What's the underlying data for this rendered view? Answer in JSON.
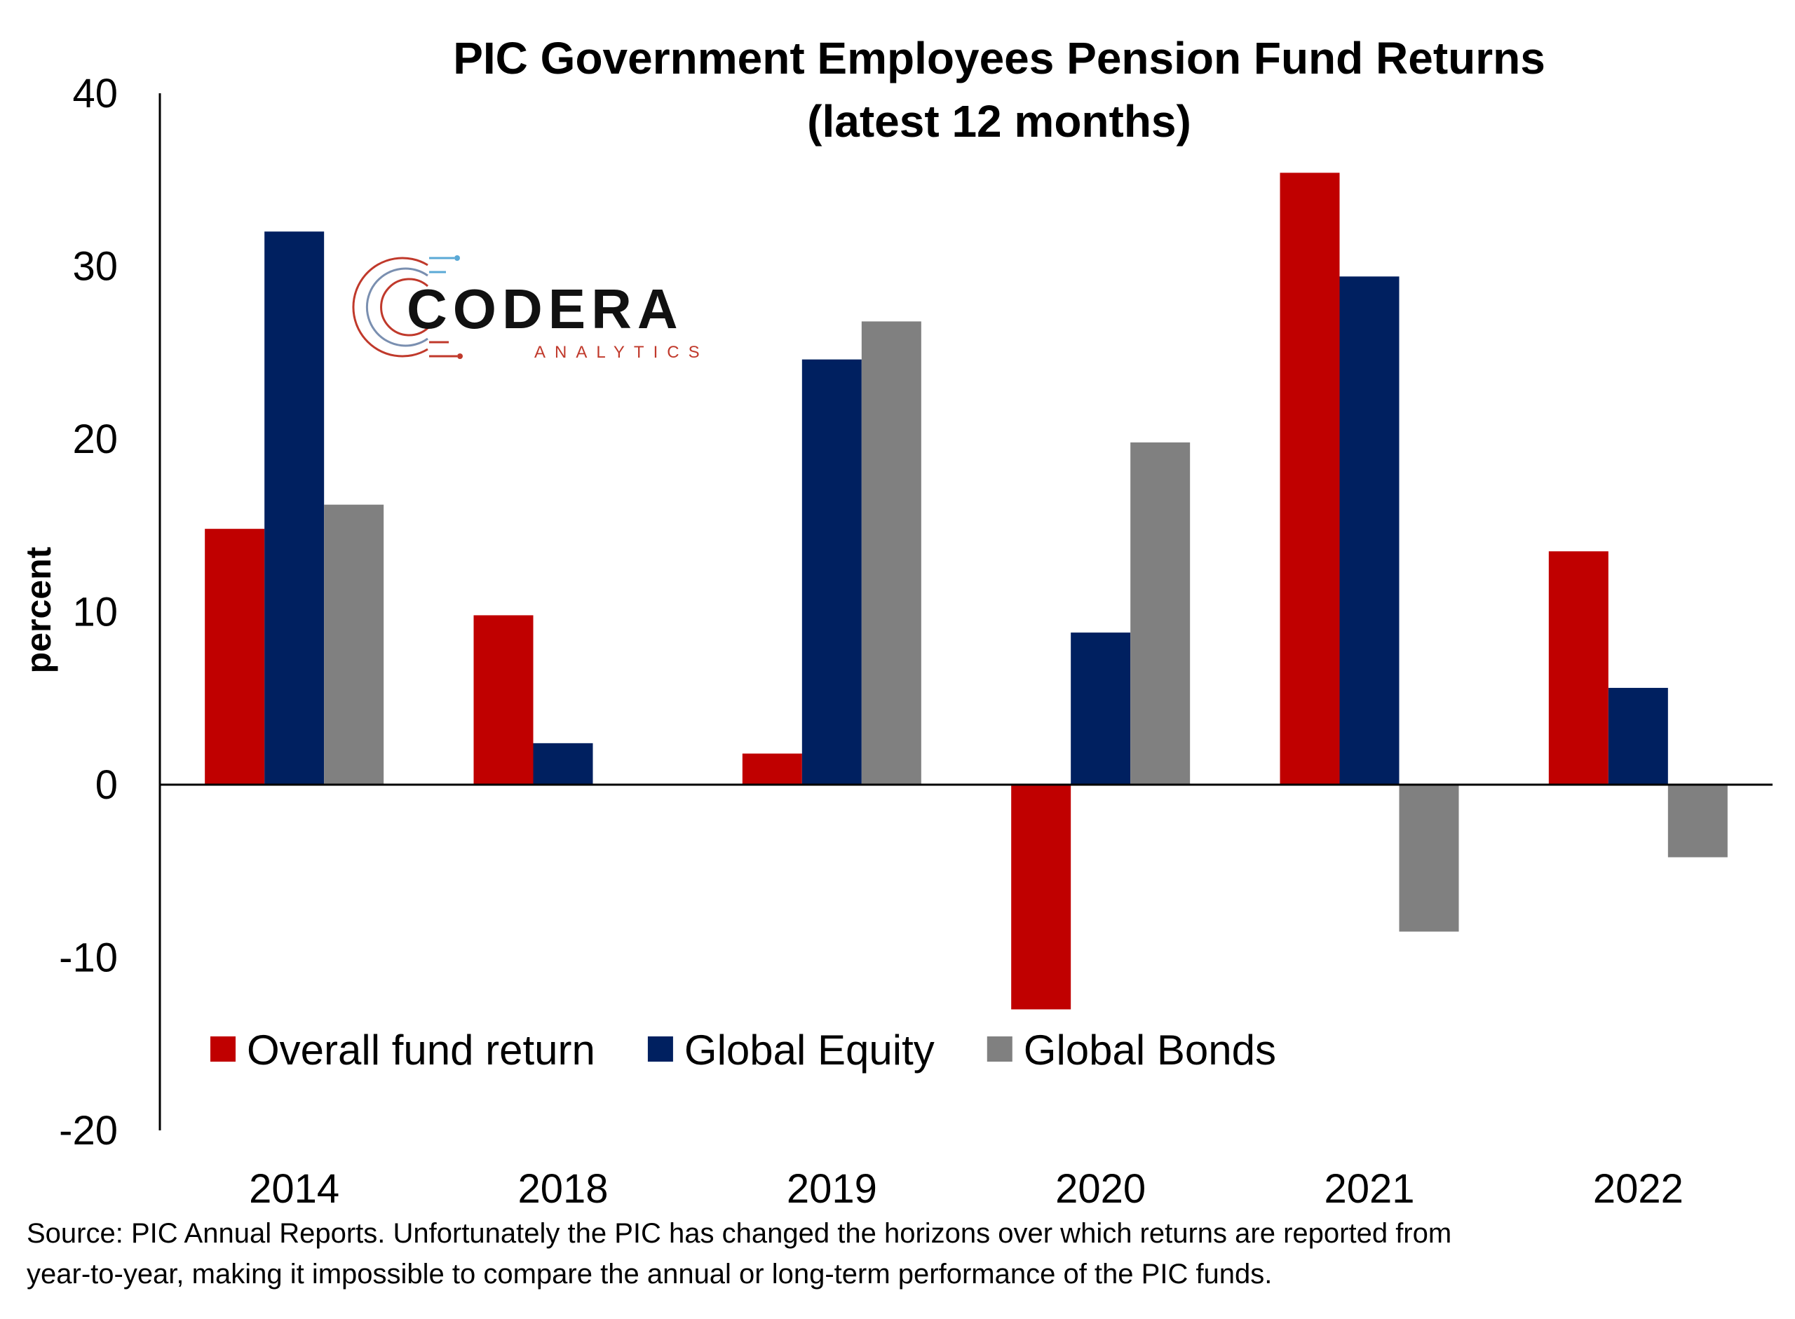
{
  "chart_data": {
    "type": "bar",
    "title_line1": "PIC Government Employees Pension Fund Returns",
    "title_line2": "(latest 12 months)",
    "ylabel": "percent",
    "xlabel": "",
    "categories": [
      "2014",
      "2018",
      "2019",
      "2020",
      "2021",
      "2022"
    ],
    "series": [
      {
        "name": "Overall fund return",
        "color": "#c00000",
        "values": [
          14.8,
          9.8,
          1.8,
          -13.0,
          35.4,
          13.5
        ]
      },
      {
        "name": "Global Equity",
        "color": "#002060",
        "values": [
          32.0,
          2.4,
          24.6,
          8.8,
          29.4,
          5.6
        ]
      },
      {
        "name": "Global Bonds",
        "color": "#808080",
        "values": [
          16.2,
          null,
          26.8,
          19.8,
          -8.5,
          -4.2
        ]
      }
    ],
    "ylim": [
      -20,
      40
    ],
    "yticks": [
      "-20",
      "-10",
      "0",
      "10",
      "20",
      "30",
      "40"
    ],
    "grid": false,
    "legend_position": "bottom-left inside"
  },
  "logo": {
    "name": "CODERA",
    "sub": "ANALYTICS"
  },
  "source_line1": "Source: PIC Annual Reports. Unfortunately the PIC has changed the horizons over which returns are reported from",
  "source_line2": "year-to-year, making it impossible to compare the annual or long-term performance of the PIC funds."
}
